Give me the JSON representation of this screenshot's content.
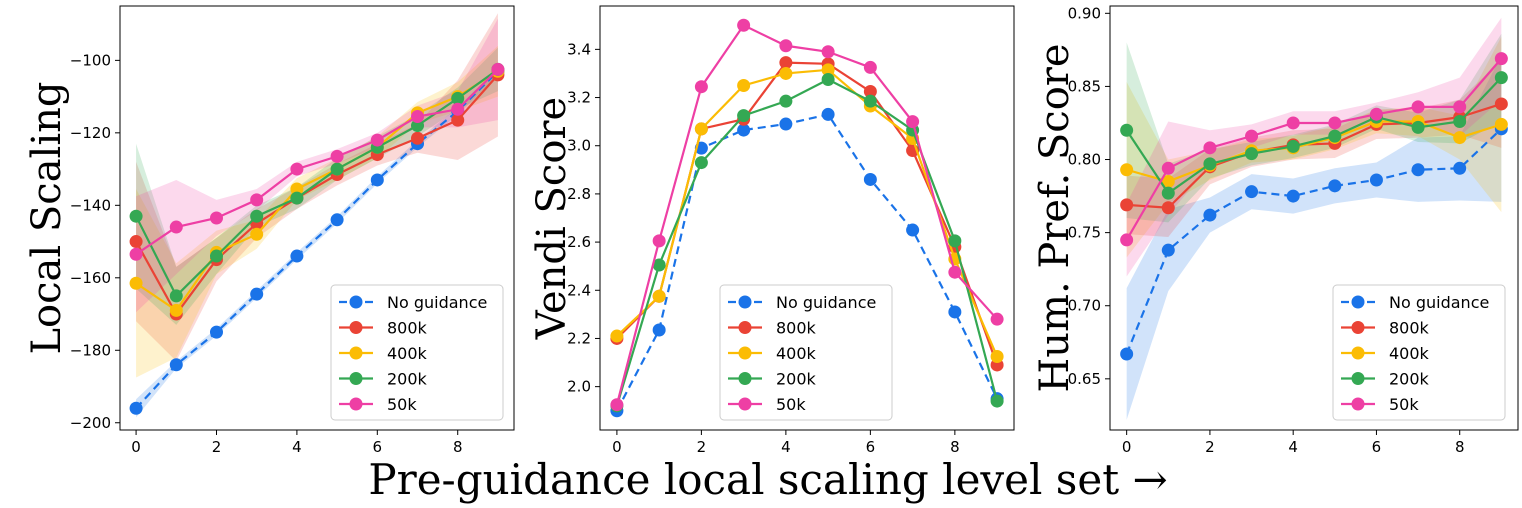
{
  "figure": {
    "xlabel": "Pre-guidance local scaling level set →"
  },
  "colors": {
    "No guidance": "#1a73e8",
    "800k": "#ea4335",
    "400k": "#fbbc04",
    "200k": "#34a853",
    "50k": "#ee3fa4"
  },
  "chart_data": [
    {
      "type": "line",
      "ylabel": "Local Scaling",
      "x": [
        0,
        1,
        2,
        3,
        4,
        5,
        6,
        7,
        8,
        9
      ],
      "xlim": [
        -0.4,
        9.4
      ],
      "ylim": [
        -202,
        -85
      ],
      "xticks": [
        0,
        2,
        4,
        6,
        8
      ],
      "yticks": [
        -200,
        -180,
        -160,
        -140,
        -120,
        -100
      ],
      "legend_position": "bottom-right",
      "grid": false,
      "series": [
        {
          "name": "No guidance",
          "dashed": true,
          "values": [
            -196,
            -184,
            -175,
            -164.5,
            -154,
            -144,
            -133,
            -123,
            -114,
            -103
          ],
          "band": [
            2.5,
            1,
            1,
            1,
            1,
            1,
            1,
            1,
            1,
            1
          ]
        },
        {
          "name": "800k",
          "dashed": false,
          "values": [
            -150,
            -170,
            -155,
            -145,
            -138,
            -131.5,
            -126,
            -121.5,
            -116.5,
            -104
          ],
          "band": [
            22,
            13,
            6,
            4,
            3,
            3,
            3,
            4,
            11,
            17
          ]
        },
        {
          "name": "400k",
          "dashed": false,
          "values": [
            -161.5,
            -169,
            -153,
            -148,
            -135.5,
            -130,
            -124,
            -114.5,
            -110,
            -103
          ],
          "band": [
            26,
            13,
            6,
            4,
            3,
            3,
            3,
            3,
            4,
            7
          ]
        },
        {
          "name": "200k",
          "dashed": false,
          "values": [
            -143,
            -165,
            -154,
            -143,
            -138,
            -130,
            -124,
            -118,
            -110.5,
            -102.5
          ],
          "band": [
            20,
            8,
            5,
            3,
            3,
            3,
            3,
            3,
            3,
            6
          ]
        },
        {
          "name": "50k",
          "dashed": false,
          "values": [
            -153.5,
            -146,
            -143.5,
            -138.5,
            -130,
            -126.5,
            -122,
            -115.5,
            -113.5,
            -102.5
          ],
          "band": [
            16,
            13,
            5,
            3,
            2,
            2,
            2,
            3,
            5,
            14
          ]
        }
      ]
    },
    {
      "type": "line",
      "ylabel": "Vendi Score",
      "x": [
        0,
        1,
        2,
        3,
        4,
        5,
        6,
        7,
        8,
        9
      ],
      "xlim": [
        -0.4,
        9.4
      ],
      "ylim": [
        1.82,
        3.58
      ],
      "xticks": [
        0,
        2,
        4,
        6,
        8
      ],
      "yticks": [
        2.0,
        2.2,
        2.4,
        2.6,
        2.8,
        3.0,
        3.2,
        3.4
      ],
      "ytick_labels": [
        "2.0",
        "2.2",
        "2.4",
        "2.6",
        "2.8",
        "3.0",
        "3.2",
        "3.4"
      ],
      "legend_position": "bottom-center",
      "grid": false,
      "series": [
        {
          "name": "No guidance",
          "dashed": true,
          "values": [
            1.9,
            2.235,
            2.99,
            3.065,
            3.09,
            3.13,
            2.86,
            2.65,
            2.31,
            1.95
          ],
          "band": null
        },
        {
          "name": "800k",
          "dashed": false,
          "values": [
            2.2,
            2.375,
            3.07,
            3.11,
            3.345,
            3.34,
            3.225,
            2.98,
            2.58,
            2.09
          ],
          "band": null
        },
        {
          "name": "400k",
          "dashed": false,
          "values": [
            2.21,
            2.375,
            3.07,
            3.25,
            3.3,
            3.315,
            3.165,
            3.03,
            2.53,
            2.125
          ],
          "band": null
        },
        {
          "name": "200k",
          "dashed": false,
          "values": [
            1.92,
            2.505,
            2.93,
            3.125,
            3.185,
            3.275,
            3.185,
            3.065,
            2.605,
            1.94
          ],
          "band": null
        },
        {
          "name": "50k",
          "dashed": false,
          "values": [
            1.925,
            2.605,
            3.245,
            3.5,
            3.415,
            3.39,
            3.325,
            3.1,
            2.475,
            2.28
          ],
          "band": null
        }
      ]
    },
    {
      "type": "line",
      "ylabel": "Hum. Pref. Score",
      "x": [
        0,
        1,
        2,
        3,
        4,
        5,
        6,
        7,
        8,
        9
      ],
      "xlim": [
        -0.4,
        9.4
      ],
      "ylim": [
        0.615,
        0.905
      ],
      "xticks": [
        0,
        2,
        4,
        6,
        8
      ],
      "yticks": [
        0.65,
        0.7,
        0.75,
        0.8,
        0.85,
        0.9
      ],
      "ytick_labels": [
        "0.65",
        "0.70",
        "0.75",
        "0.80",
        "0.85",
        "0.90"
      ],
      "legend_position": "bottom-right",
      "grid": false,
      "series": [
        {
          "name": "No guidance",
          "dashed": true,
          "values": [
            0.667,
            0.738,
            0.762,
            0.778,
            0.775,
            0.782,
            0.786,
            0.793,
            0.794,
            0.821
          ],
          "band": [
            0.045,
            0.028,
            0.012,
            0.012,
            0.012,
            0.012,
            0.012,
            0.022,
            0.022,
            0.05
          ]
        },
        {
          "name": "800k",
          "dashed": false,
          "values": [
            0.769,
            0.767,
            0.795,
            0.805,
            0.81,
            0.811,
            0.824,
            0.825,
            0.829,
            0.838
          ],
          "band": [
            0.02,
            0.02,
            0.012,
            0.01,
            0.01,
            0.01,
            0.01,
            0.01,
            0.012,
            0.03
          ]
        },
        {
          "name": "400k",
          "dashed": false,
          "values": [
            0.793,
            0.785,
            0.796,
            0.806,
            0.808,
            0.815,
            0.826,
            0.826,
            0.815,
            0.824
          ],
          "band": [
            0.06,
            0.015,
            0.01,
            0.008,
            0.008,
            0.008,
            0.008,
            0.01,
            0.015,
            0.06
          ]
        },
        {
          "name": "200k",
          "dashed": false,
          "values": [
            0.82,
            0.777,
            0.797,
            0.804,
            0.809,
            0.816,
            0.829,
            0.822,
            0.826,
            0.856
          ],
          "band": [
            0.06,
            0.02,
            0.01,
            0.008,
            0.008,
            0.008,
            0.008,
            0.01,
            0.015,
            0.03
          ]
        },
        {
          "name": "50k",
          "dashed": false,
          "values": [
            0.745,
            0.794,
            0.808,
            0.816,
            0.825,
            0.825,
            0.831,
            0.836,
            0.836,
            0.869
          ],
          "band": [
            0.025,
            0.032,
            0.012,
            0.008,
            0.008,
            0.008,
            0.008,
            0.01,
            0.02,
            0.028
          ]
        }
      ]
    }
  ]
}
